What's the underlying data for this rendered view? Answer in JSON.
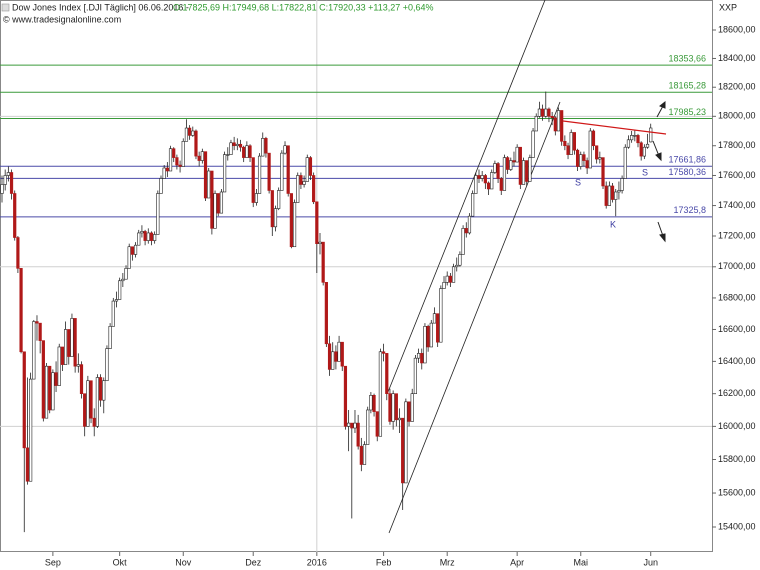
{
  "chart_data": {
    "type": "candlestick",
    "header": {
      "name": "Dow Jones Index [.DJI  Täglich] 06.06.2016 -",
      "quote": "O:17825,69 H:17949,68 L:17822,81 C:17920,33 +113,27 +0,64%",
      "source": "© www.tradesignalonline.com",
      "corner": "XXP"
    },
    "log_y": true,
    "up_color": "#ffffff",
    "down_color": "#b01818",
    "outline_color": "#222222",
    "ylim": [
      15400,
      18600
    ],
    "yticks": [
      {
        "value": 15400,
        "label": "15400,00"
      },
      {
        "value": 15600,
        "label": "15600,00"
      },
      {
        "value": 15800,
        "label": "15800,00"
      },
      {
        "value": 16000,
        "label": "16000,00"
      },
      {
        "value": 16200,
        "label": "16200,00"
      },
      {
        "value": 16400,
        "label": "16400,00"
      },
      {
        "value": 16600,
        "label": "16600,00"
      },
      {
        "value": 16800,
        "label": "16800,00"
      },
      {
        "value": 17000,
        "label": "17000,00"
      },
      {
        "value": 17200,
        "label": "17200,00"
      },
      {
        "value": 17400,
        "label": "17400,00"
      },
      {
        "value": 17600,
        "label": "17600,00"
      },
      {
        "value": 17800,
        "label": "17800,00"
      },
      {
        "value": 18000,
        "label": "18000,00"
      },
      {
        "value": 18200,
        "label": "18200,00"
      },
      {
        "value": 18400,
        "label": "18400,00"
      },
      {
        "value": 18600,
        "label": "18600,00"
      }
    ],
    "grid_values": [
      16000,
      17000,
      18000
    ],
    "xticks": [
      {
        "value": 16,
        "label": "Sep"
      },
      {
        "value": 37,
        "label": "Okt"
      },
      {
        "value": 57,
        "label": "Nov"
      },
      {
        "value": 79,
        "label": "Dez"
      },
      {
        "value": 99,
        "label": "2016"
      },
      {
        "value": 120,
        "label": "Feb"
      },
      {
        "value": 140,
        "label": "Mrz"
      },
      {
        "value": 162,
        "label": "Apr"
      },
      {
        "value": 182,
        "label": "Mai"
      },
      {
        "value": 204,
        "label": "Jun"
      }
    ],
    "levels": [
      {
        "value": 18353.66,
        "label": "18353,66",
        "color": "#3a9a3a"
      },
      {
        "value": 18165.28,
        "label": "18165,28",
        "color": "#3a9a3a"
      },
      {
        "value": 17985.23,
        "label": "17985,23",
        "color": "#3a9a3a"
      },
      {
        "value": 17661.86,
        "label": "17661,86",
        "color": "#4a4aa8"
      },
      {
        "value": 17580.36,
        "label": "17580,36",
        "color": "#4a4aa8"
      },
      {
        "value": 17325.8,
        "label": "17325,8",
        "color": "#4a4aa8"
      }
    ],
    "annotations": [
      "S",
      "S",
      "K"
    ],
    "candles": [
      [
        17480,
        17600,
        17420,
        17540
      ],
      [
        17540,
        17640,
        17500,
        17600
      ],
      [
        17600,
        17660,
        17560,
        17620
      ],
      [
        17620,
        17640,
        17440,
        17480
      ],
      [
        17480,
        17500,
        17170,
        17190
      ],
      [
        17190,
        17200,
        16960,
        16990
      ],
      [
        16990,
        16990,
        16450,
        16460
      ],
      [
        16460,
        16460,
        15370,
        15870
      ],
      [
        15870,
        16300,
        15650,
        15670
      ],
      [
        15670,
        16330,
        15670,
        16290
      ],
      [
        16290,
        16660,
        16290,
        16650
      ],
      [
        16650,
        16690,
        16530,
        16640
      ],
      [
        16640,
        16640,
        16450,
        16530
      ],
      [
        16530,
        16530,
        16030,
        16050
      ],
      [
        16050,
        16390,
        16050,
        16370
      ],
      [
        16370,
        16370,
        16080,
        16100
      ],
      [
        16100,
        16350,
        16100,
        16330
      ],
      [
        16330,
        16400,
        16210,
        16250
      ],
      [
        16250,
        16510,
        16250,
        16490
      ],
      [
        16490,
        16490,
        16340,
        16380
      ],
      [
        16380,
        16650,
        16380,
        16600
      ],
      [
        16600,
        16600,
        16380,
        16430
      ],
      [
        16430,
        16700,
        16430,
        16670
      ],
      [
        16670,
        16670,
        16330,
        16370
      ],
      [
        16370,
        16450,
        16330,
        16380
      ],
      [
        16380,
        16400,
        16170,
        16200
      ],
      [
        16200,
        16200,
        15940,
        16000
      ],
      [
        16000,
        16310,
        16000,
        16280
      ],
      [
        16280,
        16280,
        16020,
        16050
      ],
      [
        16050,
        16110,
        15940,
        16000
      ],
      [
        16000,
        16320,
        15990,
        16300
      ],
      [
        16300,
        16320,
        16120,
        16160
      ],
      [
        16160,
        16300,
        16080,
        16280
      ],
      [
        16280,
        16500,
        16280,
        16480
      ],
      [
        16480,
        16640,
        16480,
        16620
      ],
      [
        16620,
        16800,
        16620,
        16780
      ],
      [
        16780,
        16840,
        16740,
        16790
      ],
      [
        16790,
        16930,
        16790,
        16910
      ],
      [
        16910,
        16960,
        16870,
        16920
      ],
      [
        16920,
        17010,
        16920,
        16990
      ],
      [
        16990,
        17150,
        16990,
        17130
      ],
      [
        17130,
        17130,
        17040,
        17080
      ],
      [
        17080,
        17160,
        17060,
        17140
      ],
      [
        17140,
        17240,
        17140,
        17220
      ],
      [
        17220,
        17270,
        17190,
        17230
      ],
      [
        17230,
        17240,
        17140,
        17170
      ],
      [
        17170,
        17250,
        17150,
        17220
      ],
      [
        17220,
        17230,
        17140,
        17170
      ],
      [
        17170,
        17230,
        17150,
        17210
      ],
      [
        17210,
        17500,
        17210,
        17480
      ],
      [
        17480,
        17600,
        17480,
        17580
      ],
      [
        17580,
        17670,
        17580,
        17650
      ],
      [
        17650,
        17690,
        17590,
        17630
      ],
      [
        17630,
        17800,
        17630,
        17780
      ],
      [
        17780,
        17790,
        17690,
        17720
      ],
      [
        17720,
        17740,
        17640,
        17670
      ],
      [
        17670,
        17700,
        17620,
        17660
      ],
      [
        17660,
        17850,
        17660,
        17830
      ],
      [
        17830,
        17980,
        17830,
        17920
      ],
      [
        17920,
        17940,
        17840,
        17870
      ],
      [
        17870,
        17930,
        17860,
        17900
      ],
      [
        17900,
        17910,
        17710,
        17730
      ],
      [
        17730,
        17760,
        17660,
        17700
      ],
      [
        17700,
        17780,
        17680,
        17760
      ],
      [
        17760,
        17760,
        17430,
        17450
      ],
      [
        17450,
        17650,
        17450,
        17630
      ],
      [
        17630,
        17630,
        17210,
        17250
      ],
      [
        17250,
        17500,
        17250,
        17480
      ],
      [
        17480,
        17480,
        17330,
        17350
      ],
      [
        17350,
        17510,
        17350,
        17490
      ],
      [
        17490,
        17760,
        17490,
        17740
      ],
      [
        17740,
        17790,
        17700,
        17740
      ],
      [
        17740,
        17840,
        17740,
        17820
      ],
      [
        17820,
        17860,
        17770,
        17800
      ],
      [
        17800,
        17850,
        17770,
        17810
      ],
      [
        17810,
        17840,
        17760,
        17790
      ],
      [
        17790,
        17800,
        17690,
        17720
      ],
      [
        17720,
        17830,
        17720,
        17800
      ],
      [
        17800,
        17810,
        17690,
        17720
      ],
      [
        17720,
        17720,
        17390,
        17420
      ],
      [
        17420,
        17510,
        17400,
        17480
      ],
      [
        17480,
        17750,
        17480,
        17730
      ],
      [
        17730,
        17890,
        17730,
        17850
      ],
      [
        17850,
        17860,
        17720,
        17750
      ],
      [
        17750,
        17750,
        17480,
        17500
      ],
      [
        17500,
        17500,
        17200,
        17260
      ],
      [
        17260,
        17400,
        17230,
        17380
      ],
      [
        17380,
        17520,
        17370,
        17500
      ],
      [
        17500,
        17770,
        17500,
        17750
      ],
      [
        17750,
        17830,
        17740,
        17800
      ],
      [
        17800,
        17800,
        17460,
        17480
      ],
      [
        17480,
        17480,
        17120,
        17130
      ],
      [
        17130,
        17440,
        17130,
        17420
      ],
      [
        17420,
        17620,
        17420,
        17600
      ],
      [
        17600,
        17620,
        17510,
        17540
      ],
      [
        17540,
        17600,
        17520,
        17560
      ],
      [
        17560,
        17740,
        17560,
        17720
      ],
      [
        17720,
        17730,
        17570,
        17600
      ],
      [
        17600,
        17620,
        17410,
        17425
      ],
      [
        17425,
        17425,
        16960,
        17150
      ],
      [
        17150,
        17220,
        17080,
        17160
      ],
      [
        17160,
        17160,
        16880,
        16900
      ],
      [
        16900,
        16900,
        16490,
        16510
      ],
      [
        16510,
        16560,
        16310,
        16350
      ],
      [
        16350,
        16520,
        16350,
        16460
      ],
      [
        16460,
        16500,
        16350,
        16400
      ],
      [
        16400,
        16560,
        16400,
        16520
      ],
      [
        16520,
        16520,
        16340,
        16370
      ],
      [
        16370,
        16370,
        15980,
        16000
      ],
      [
        16000,
        16100,
        15850,
        16020
      ],
      [
        16020,
        16020,
        15450,
        15990
      ],
      [
        15990,
        16100,
        15960,
        16020
      ],
      [
        16020,
        16070,
        15860,
        15880
      ],
      [
        15880,
        15930,
        15730,
        15770
      ],
      [
        15770,
        15910,
        15770,
        15890
      ],
      [
        15890,
        16120,
        15890,
        16100
      ],
      [
        16100,
        16210,
        16080,
        16190
      ],
      [
        16190,
        16200,
        16060,
        16090
      ],
      [
        16090,
        16090,
        15910,
        15940
      ],
      [
        15940,
        16480,
        15940,
        16460
      ],
      [
        16460,
        16510,
        16400,
        16450
      ],
      [
        16450,
        16450,
        16160,
        16200
      ],
      [
        16200,
        16230,
        16010,
        16030
      ],
      [
        16030,
        16220,
        15980,
        16200
      ],
      [
        16200,
        16200,
        16000,
        16040
      ],
      [
        16040,
        16110,
        15960,
        16050
      ],
      [
        16050,
        16050,
        15500,
        15660
      ],
      [
        15660,
        16170,
        15660,
        16150
      ],
      [
        16150,
        16150,
        16000,
        16030
      ],
      [
        16030,
        16230,
        16030,
        16200
      ],
      [
        16200,
        16440,
        16200,
        16420
      ],
      [
        16420,
        16480,
        16390,
        16450
      ],
      [
        16450,
        16480,
        16350,
        16390
      ],
      [
        16390,
        16640,
        16390,
        16620
      ],
      [
        16620,
        16630,
        16460,
        16490
      ],
      [
        16490,
        16660,
        16490,
        16640
      ],
      [
        16640,
        16740,
        16640,
        16700
      ],
      [
        16700,
        16700,
        16490,
        16520
      ],
      [
        16520,
        16880,
        16520,
        16860
      ],
      [
        16860,
        16940,
        16860,
        16900
      ],
      [
        16900,
        16970,
        16880,
        16940
      ],
      [
        16940,
        16960,
        16870,
        16900
      ],
      [
        16900,
        17020,
        16900,
        17000
      ],
      [
        17000,
        17060,
        16970,
        17010
      ],
      [
        17010,
        17100,
        17000,
        17080
      ],
      [
        17080,
        17270,
        17080,
        17250
      ],
      [
        17250,
        17290,
        17190,
        17220
      ],
      [
        17220,
        17350,
        17210,
        17330
      ],
      [
        17330,
        17500,
        17330,
        17480
      ],
      [
        17480,
        17620,
        17480,
        17600
      ],
      [
        17600,
        17640,
        17550,
        17580
      ],
      [
        17580,
        17630,
        17560,
        17600
      ],
      [
        17600,
        17610,
        17510,
        17550
      ],
      [
        17550,
        17560,
        17470,
        17510
      ],
      [
        17510,
        17640,
        17510,
        17620
      ],
      [
        17620,
        17700,
        17610,
        17680
      ],
      [
        17680,
        17690,
        17550,
        17580
      ],
      [
        17580,
        17590,
        17470,
        17500
      ],
      [
        17500,
        17740,
        17500,
        17720
      ],
      [
        17720,
        17730,
        17610,
        17640
      ],
      [
        17640,
        17720,
        17630,
        17700
      ],
      [
        17700,
        17760,
        17660,
        17690
      ],
      [
        17690,
        17810,
        17690,
        17790
      ],
      [
        17790,
        17790,
        17510,
        17540
      ],
      [
        17540,
        17720,
        17540,
        17700
      ],
      [
        17700,
        17700,
        17530,
        17560
      ],
      [
        17560,
        17740,
        17560,
        17720
      ],
      [
        17720,
        17920,
        17720,
        17900
      ],
      [
        17900,
        18020,
        17900,
        18000
      ],
      [
        18000,
        18100,
        17990,
        18050
      ],
      [
        18050,
        18080,
        17970,
        18000
      ],
      [
        18000,
        18170,
        17990,
        18050
      ],
      [
        18050,
        18060,
        17960,
        18000
      ],
      [
        18000,
        18030,
        17940,
        17990
      ],
      [
        17990,
        18000,
        17870,
        17900
      ],
      [
        17900,
        18060,
        17900,
        18040
      ],
      [
        18040,
        18040,
        17800,
        17830
      ],
      [
        17830,
        17870,
        17770,
        17800
      ],
      [
        17800,
        17820,
        17710,
        17740
      ],
      [
        17740,
        17910,
        17740,
        17890
      ],
      [
        17890,
        17890,
        17740,
        17770
      ],
      [
        17770,
        17780,
        17630,
        17660
      ],
      [
        17660,
        17760,
        17640,
        17740
      ],
      [
        17740,
        17760,
        17660,
        17700
      ],
      [
        17700,
        17720,
        17610,
        17650
      ],
      [
        17650,
        17920,
        17650,
        17900
      ],
      [
        17900,
        17910,
        17770,
        17800
      ],
      [
        17800,
        17800,
        17680,
        17710
      ],
      [
        17710,
        17760,
        17680,
        17720
      ],
      [
        17720,
        17720,
        17510,
        17530
      ],
      [
        17530,
        17560,
        17380,
        17400
      ],
      [
        17400,
        17560,
        17400,
        17530
      ],
      [
        17530,
        17550,
        17420,
        17440
      ],
      [
        17440,
        17510,
        17330,
        17490
      ],
      [
        17490,
        17560,
        17440,
        17500
      ],
      [
        17500,
        17600,
        17480,
        17580
      ],
      [
        17580,
        17810,
        17580,
        17790
      ],
      [
        17790,
        17870,
        17780,
        17840
      ],
      [
        17840,
        17900,
        17820,
        17870
      ],
      [
        17870,
        17910,
        17830,
        17870
      ],
      [
        17870,
        17880,
        17790,
        17820
      ],
      [
        17820,
        17830,
        17700,
        17730
      ],
      [
        17730,
        17810,
        17710,
        17790
      ],
      [
        17790,
        17880,
        17780,
        17810
      ],
      [
        17825.69,
        17949.68,
        17822.81,
        17920.33
      ]
    ]
  }
}
